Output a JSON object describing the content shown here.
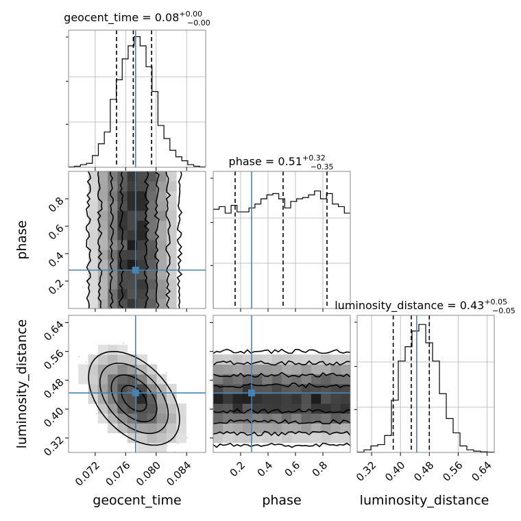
{
  "chart_data": {
    "type": "corner",
    "truth_color": "#4682b4",
    "parameters": [
      {
        "name": "geocent_time",
        "range": [
          0.0685,
          0.0865
        ],
        "ticks": [
          0.072,
          0.076,
          0.08,
          0.084
        ],
        "tick_labels": [
          "0.072",
          "0.076",
          "0.080",
          "0.084"
        ],
        "title_value": "0.08",
        "title_plus": "+0.00",
        "title_minus": "−0.00",
        "quantiles": [
          0.0748,
          0.077,
          0.0794
        ],
        "truth": 0.0773
      },
      {
        "name": "phase",
        "range": [
          0.0,
          1.0
        ],
        "ticks": [
          0.2,
          0.4,
          0.6,
          0.8
        ],
        "tick_labels": [
          "0.2",
          "0.4",
          "0.6",
          "0.8"
        ],
        "title_value": "0.51",
        "title_plus": "+0.32",
        "title_minus": "−0.35",
        "quantiles": [
          0.16,
          0.51,
          0.83
        ],
        "truth": 0.28
      },
      {
        "name": "luminosity_distance",
        "range": [
          0.28,
          0.66
        ],
        "ticks": [
          0.32,
          0.4,
          0.48,
          0.56,
          0.64
        ],
        "tick_labels": [
          "0.32",
          "0.40",
          "0.48",
          "0.56",
          "0.64"
        ],
        "title_value": "0.43",
        "title_plus": "+0.05",
        "title_minus": "−0.05",
        "quantiles": [
          0.38,
          0.43,
          0.48
        ],
        "truth": 0.445
      }
    ],
    "histograms": [
      [
        0.003,
        0.008,
        0.02,
        0.03,
        0.09,
        0.18,
        0.27,
        0.52,
        0.67,
        0.83,
        0.93,
        1.0,
        0.93,
        0.77,
        0.58,
        0.32,
        0.22,
        0.13,
        0.08,
        0.05,
        0.02,
        0.008,
        0.003
      ],
      [
        0.76,
        0.78,
        0.73,
        0.79,
        0.74,
        0.74,
        0.77,
        0.8,
        0.84,
        0.87,
        0.88,
        0.84,
        0.77,
        0.82,
        0.84,
        0.85,
        0.87,
        0.9,
        0.84,
        0.88,
        0.8,
        0.78,
        0.73
      ],
      [
        0.003,
        0.02,
        0.05,
        0.06,
        0.13,
        0.4,
        0.7,
        0.81,
        0.93,
        0.98,
        0.84,
        0.7,
        0.45,
        0.26,
        0.15,
        0.05,
        0.02,
        0.01,
        0.005,
        0.003
      ]
    ]
  }
}
